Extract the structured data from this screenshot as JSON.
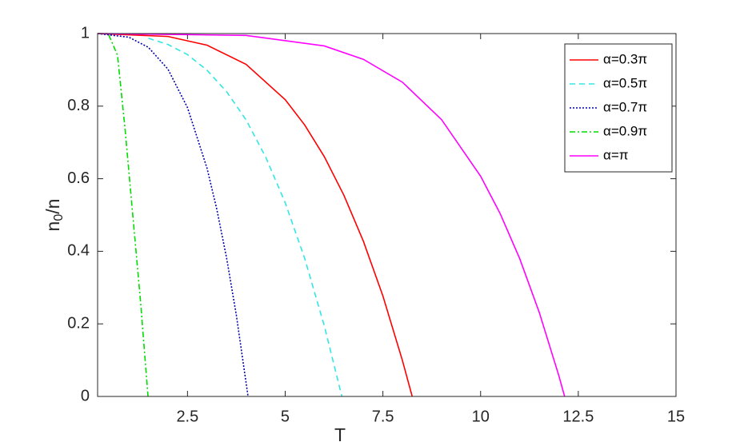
{
  "chart_data": {
    "type": "line",
    "xlabel": "T",
    "ylabel": {
      "base": "n",
      "sub": "0",
      "rest": "/n"
    },
    "xlim": [
      0.2,
      15
    ],
    "ylim": [
      0,
      1
    ],
    "xticks": [
      2.5,
      5,
      7.5,
      10,
      12.5,
      15
    ],
    "yticks": [
      0,
      0.2,
      0.4,
      0.6,
      0.8,
      1
    ],
    "grid": false,
    "legend": "top-right",
    "series": [
      {
        "name": "α=0.3π",
        "color": "#ff0000",
        "style": "solid",
        "x": [
          0.2,
          2,
          3,
          4,
          5,
          5.5,
          6,
          6.5,
          7,
          7.5,
          8,
          8.25
        ],
        "values": [
          1,
          0.992,
          0.968,
          0.915,
          0.818,
          0.748,
          0.661,
          0.555,
          0.428,
          0.277,
          0.099,
          0
        ]
      },
      {
        "name": "α=0.5π",
        "color": "#33e6e6",
        "style": "dashed",
        "x": [
          1.5,
          2,
          2.5,
          3,
          3.5,
          4,
          4.5,
          5,
          5.5,
          6,
          6.45
        ],
        "values": [
          0.987,
          0.97,
          0.942,
          0.899,
          0.84,
          0.762,
          0.66,
          0.534,
          0.38,
          0.195,
          0
        ]
      },
      {
        "name": "α=0.7π",
        "color": "#0000b0",
        "style": "dotted",
        "x": [
          0.2,
          1,
          1.5,
          2,
          2.5,
          3,
          3.25,
          3.5,
          3.75,
          4.05
        ],
        "values": [
          1,
          0.99,
          0.962,
          0.902,
          0.796,
          0.629,
          0.516,
          0.382,
          0.224,
          0
        ]
      },
      {
        "name": "α=0.9π",
        "color": "#00dd00",
        "style": "dashdot",
        "x": [
          0.2,
          0.47,
          0.71,
          0.9,
          1.1,
          1.3,
          1.49
        ],
        "values": [
          1,
          1,
          0.94,
          0.74,
          0.5,
          0.26,
          0
        ]
      },
      {
        "name": "α=π",
        "color": "#ff00ff",
        "style": "solid",
        "x": [
          0.2,
          4,
          6,
          7,
          8,
          9,
          10,
          10.5,
          11,
          11.5,
          12,
          12.15
        ],
        "values": [
          1,
          0.995,
          0.966,
          0.929,
          0.866,
          0.763,
          0.607,
          0.504,
          0.38,
          0.232,
          0.058,
          0
        ]
      }
    ]
  }
}
